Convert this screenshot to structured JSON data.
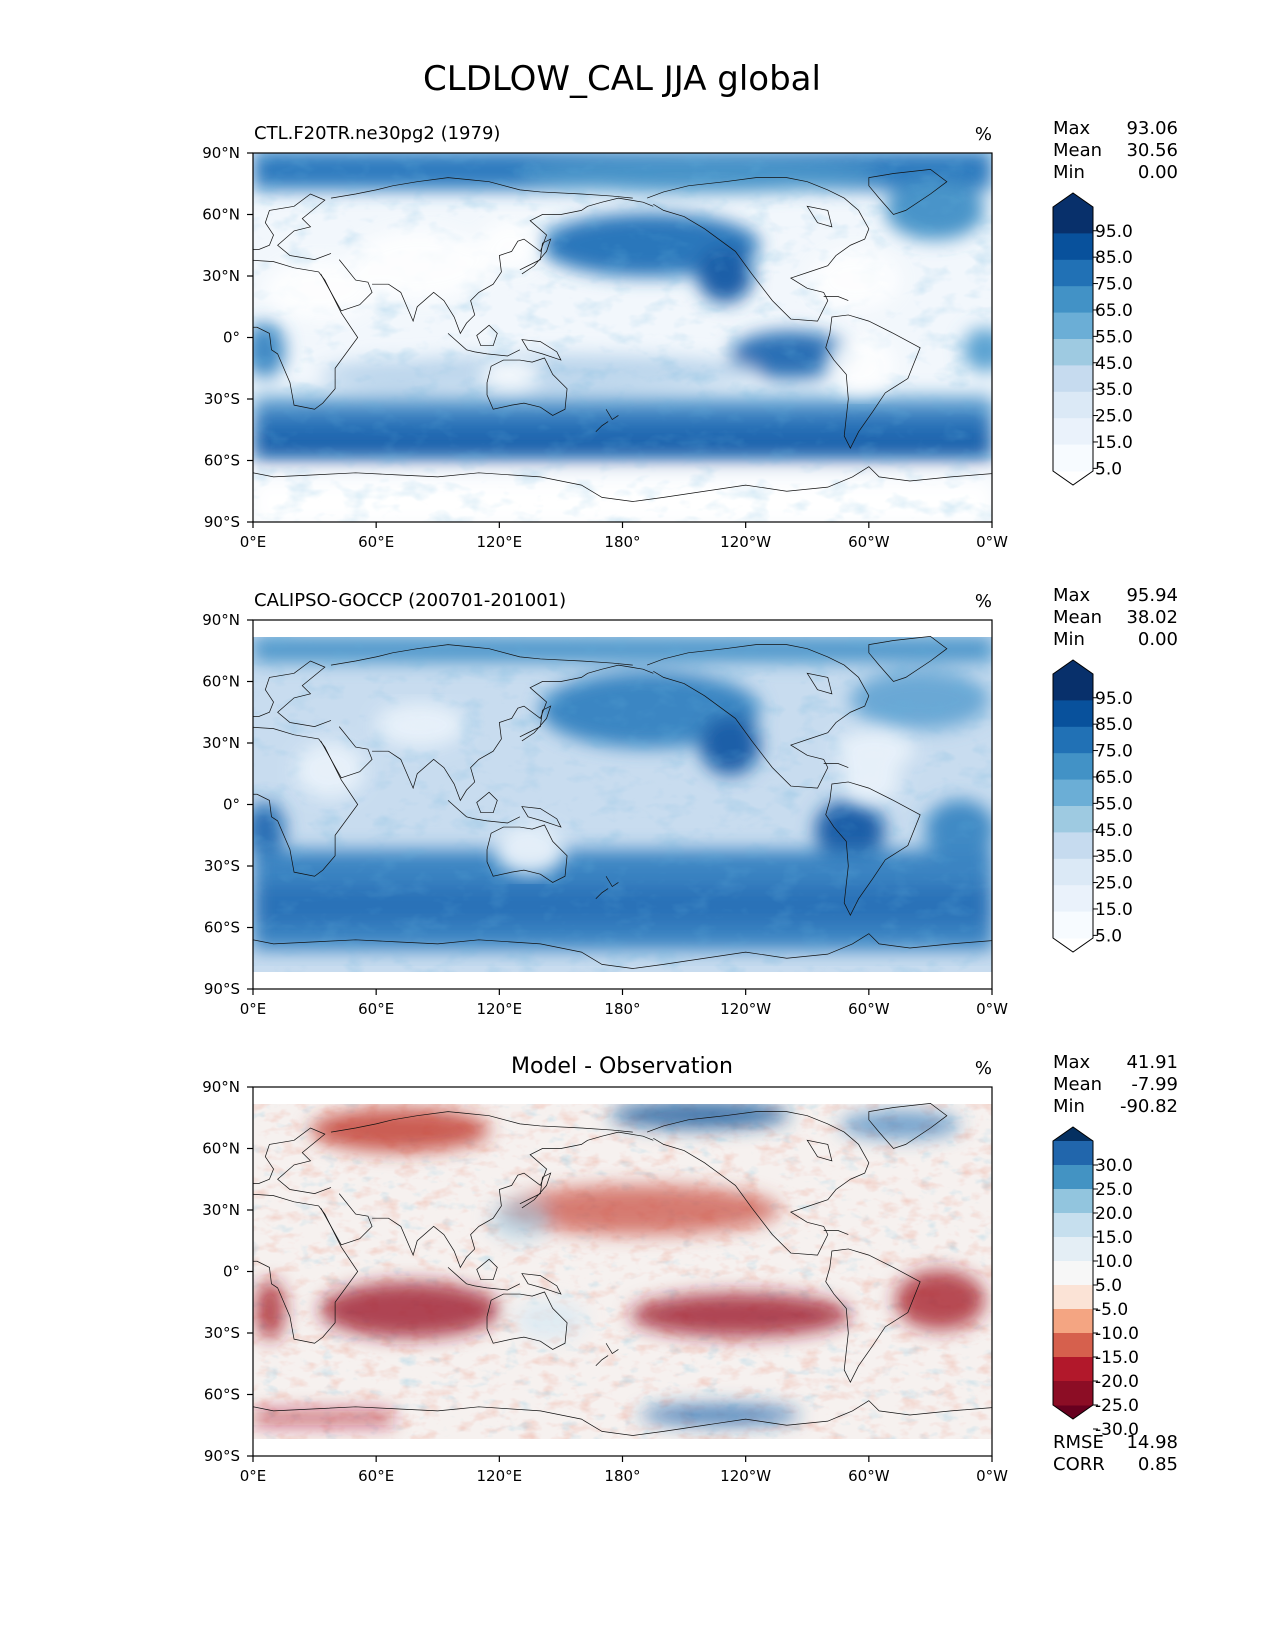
{
  "title": "CLDLOW_CAL JJA global",
  "x_ticks": [
    "0°E",
    "60°E",
    "120°E",
    "180°",
    "120°W",
    "60°W",
    "0°W"
  ],
  "y_ticks": [
    "90°N",
    "60°N",
    "30°N",
    "0°",
    "30°S",
    "60°S",
    "90°S"
  ],
  "panels": [
    {
      "left_title": "CTL.F20TR.ne30pg2 (1979)",
      "center_title": "",
      "units": "%",
      "stats": [
        {
          "label": "Max",
          "value": "93.06"
        },
        {
          "label": "Mean",
          "value": "30.56"
        },
        {
          "label": "Min",
          "value": "0.00"
        }
      ],
      "colorbar": {
        "ticks": [
          "95.0",
          "85.0",
          "75.0",
          "65.0",
          "55.0",
          "45.0",
          "35.0",
          "25.0",
          "15.0",
          "5.0"
        ],
        "colors": [
          "#08306b",
          "#08519c",
          "#2171b5",
          "#4292c6",
          "#6baed6",
          "#9ecae1",
          "#c6dbef",
          "#dbe9f6",
          "#eaf2fb",
          "#f7fbff"
        ]
      }
    },
    {
      "left_title": "CALIPSO-GOCCP (200701-201001)",
      "center_title": "",
      "units": "%",
      "stats": [
        {
          "label": "Max",
          "value": "95.94"
        },
        {
          "label": "Mean",
          "value": "38.02"
        },
        {
          "label": "Min",
          "value": "0.00"
        }
      ],
      "colorbar": {
        "ticks": [
          "95.0",
          "85.0",
          "75.0",
          "65.0",
          "55.0",
          "45.0",
          "35.0",
          "25.0",
          "15.0",
          "5.0"
        ],
        "colors": [
          "#08306b",
          "#08519c",
          "#2171b5",
          "#4292c6",
          "#6baed6",
          "#9ecae1",
          "#c6dbef",
          "#dbe9f6",
          "#eaf2fb",
          "#f7fbff"
        ]
      }
    },
    {
      "left_title": "",
      "center_title": "Model - Observation",
      "units": "%",
      "stats": [
        {
          "label": "Max",
          "value": "41.91"
        },
        {
          "label": "Mean",
          "value": "-7.99"
        },
        {
          "label": "Min",
          "value": "-90.82"
        }
      ],
      "extra_stats": [
        {
          "label": "RMSE",
          "value": "14.98"
        },
        {
          "label": "CORR",
          "value": "0.85"
        }
      ],
      "colorbar": {
        "ticks": [
          "30.0",
          "25.0",
          "20.0",
          "15.0",
          "10.0",
          "5.0",
          "-5.0",
          "-10.0",
          "-15.0",
          "-20.0",
          "-25.0",
          "-30.0"
        ],
        "colors": [
          "#053061",
          "#2166ac",
          "#4393c3",
          "#92c5de",
          "#c6dfee",
          "#e4eef5",
          "#f7f7f7",
          "#fbe3d6",
          "#f4a582",
          "#d6604d",
          "#b2182b",
          "#8c0d25",
          "#67001f"
        ]
      }
    }
  ]
}
